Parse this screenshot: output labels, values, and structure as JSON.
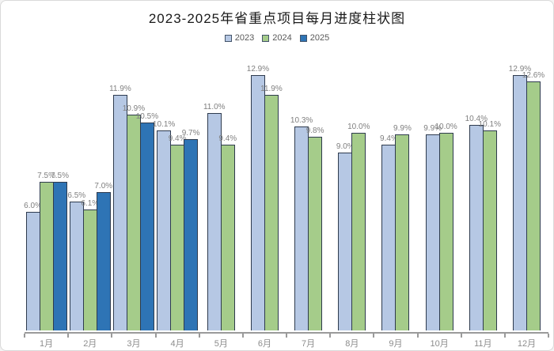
{
  "page": {
    "title": "2023-2025年省重点项目每月进度柱状图"
  },
  "chart_data": {
    "type": "bar",
    "title": "2023-2025年省重点项目每月进度柱状图",
    "categories": [
      "1月",
      "2月",
      "3月",
      "4月",
      "5月",
      "6月",
      "7月",
      "8月",
      "9月",
      "10月",
      "11月",
      "12月"
    ],
    "series": [
      {
        "name": "2023",
        "color": "#b6c8e4",
        "values": [
          6.0,
          6.5,
          11.9,
          10.1,
          11.0,
          12.9,
          10.3,
          9.0,
          9.4,
          9.9,
          10.4,
          12.9
        ]
      },
      {
        "name": "2024",
        "color": "#a5cc8a",
        "values": [
          7.5,
          6.1,
          10.9,
          9.4,
          9.4,
          11.9,
          9.8,
          10.0,
          9.9,
          10.0,
          10.1,
          12.6
        ]
      },
      {
        "name": "2025",
        "color": "#2e74b5",
        "values": [
          7.5,
          7.0,
          10.5,
          9.7,
          null,
          null,
          null,
          null,
          null,
          null,
          null,
          null
        ]
      }
    ],
    "value_suffix": "%",
    "data_labels": true,
    "xlabel": "",
    "ylabel": "",
    "ylim": [
      0,
      13.5
    ],
    "grid": false,
    "legend_position": "top",
    "colors": {
      "axis": "#9a9a9a",
      "data_label": "#7f7f7f",
      "tick_label": "#8c8c8c",
      "bar_border": "#2e3b4e",
      "title": "#1a1a1a"
    }
  }
}
